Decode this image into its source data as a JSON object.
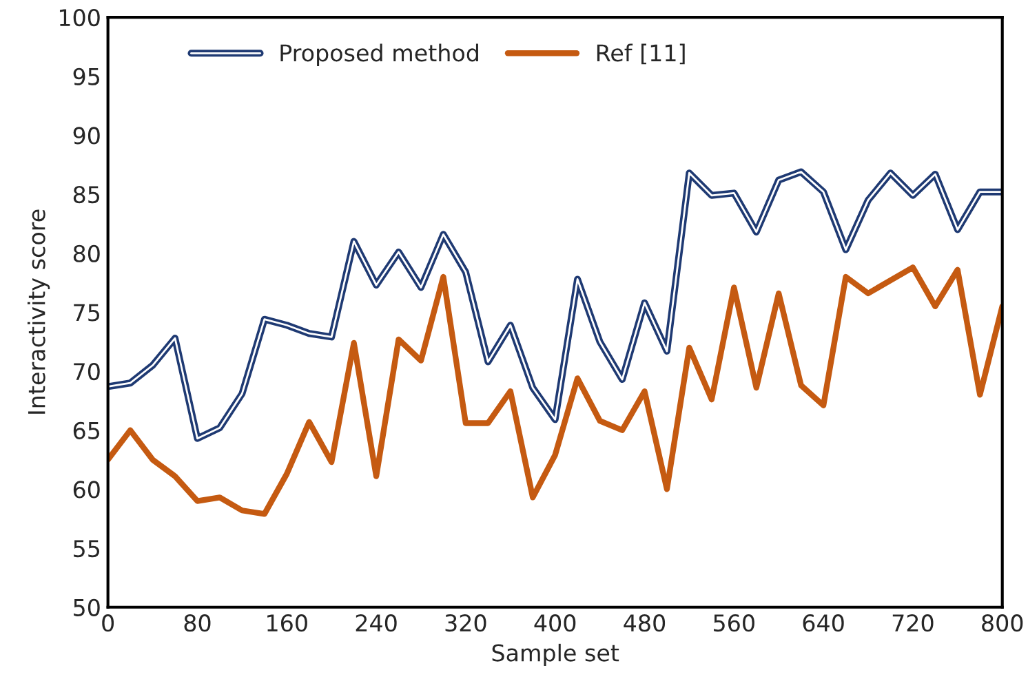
{
  "chart_data": {
    "type": "line",
    "xlabel": "Sample set",
    "ylabel": "Interactivity score",
    "x": [
      0,
      20,
      40,
      60,
      80,
      100,
      120,
      140,
      160,
      180,
      200,
      220,
      240,
      260,
      280,
      300,
      320,
      340,
      360,
      380,
      400,
      420,
      440,
      460,
      480,
      500,
      520,
      540,
      560,
      580,
      600,
      620,
      640,
      660,
      680,
      700,
      720,
      740,
      760,
      780,
      800
    ],
    "series": [
      {
        "name": "Proposed method",
        "color": "#1f3a73",
        "values": [
          68.7,
          69.0,
          70.5,
          72.8,
          64.3,
          65.2,
          68.1,
          74.4,
          73.9,
          73.2,
          72.9,
          81.0,
          77.3,
          80.1,
          77.1,
          81.6,
          78.4,
          70.8,
          73.9,
          68.6,
          65.9,
          77.8,
          72.5,
          69.3,
          75.8,
          71.7,
          86.8,
          84.9,
          85.1,
          81.8,
          86.2,
          86.9,
          85.2,
          80.3,
          84.5,
          86.8,
          84.9,
          86.7,
          82.0,
          85.2,
          85.2
        ]
      },
      {
        "name": "Ref [11]",
        "color": "#c55a11",
        "values": [
          62.5,
          65.0,
          62.5,
          61.1,
          59.0,
          59.3,
          58.2,
          57.9,
          61.3,
          65.7,
          62.3,
          72.4,
          61.1,
          72.7,
          70.9,
          78.0,
          65.6,
          65.6,
          68.3,
          59.3,
          62.9,
          69.4,
          65.8,
          65.0,
          68.3,
          60.0,
          72.0,
          67.6,
          77.1,
          68.6,
          76.6,
          68.8,
          67.1,
          78.0,
          76.6,
          77.7,
          78.8,
          75.5,
          78.6,
          68.0,
          75.5
        ]
      }
    ],
    "xlim": [
      0,
      800
    ],
    "xticks": [
      0,
      80,
      160,
      240,
      320,
      400,
      480,
      560,
      640,
      720,
      800
    ],
    "ylim": [
      50,
      100
    ],
    "yticks": [
      50,
      55,
      60,
      65,
      70,
      75,
      80,
      85,
      90,
      95,
      100
    ],
    "grid": false,
    "legend": "top left"
  }
}
